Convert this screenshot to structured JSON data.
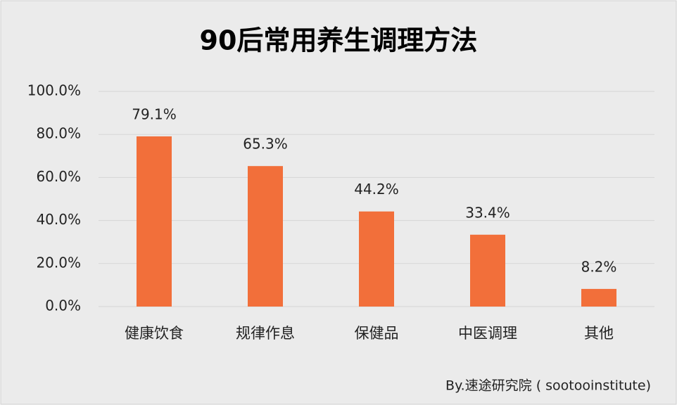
{
  "chart_data": {
    "type": "bar",
    "title": "90后常用养生调理方法",
    "categories": [
      "健康饮食",
      "规律作息",
      "保健品",
      "中医调理",
      "其他"
    ],
    "values": [
      79.1,
      65.3,
      44.2,
      33.4,
      8.2
    ],
    "value_labels": [
      "79.1%",
      "65.3%",
      "44.2%",
      "33.4%",
      "8.2%"
    ],
    "color": "#f26f3a",
    "ylim": [
      0,
      100
    ],
    "yticks": [
      {
        "value": 0,
        "label": "0.0%"
      },
      {
        "value": 20,
        "label": "20.0%"
      },
      {
        "value": 40,
        "label": "40.0%"
      },
      {
        "value": 60,
        "label": "60.0%"
      },
      {
        "value": 80,
        "label": "80.0%"
      },
      {
        "value": 100,
        "label": "100.0%"
      }
    ],
    "grid": true,
    "source": "By.速途研究院 ( sootooinstitute)"
  }
}
